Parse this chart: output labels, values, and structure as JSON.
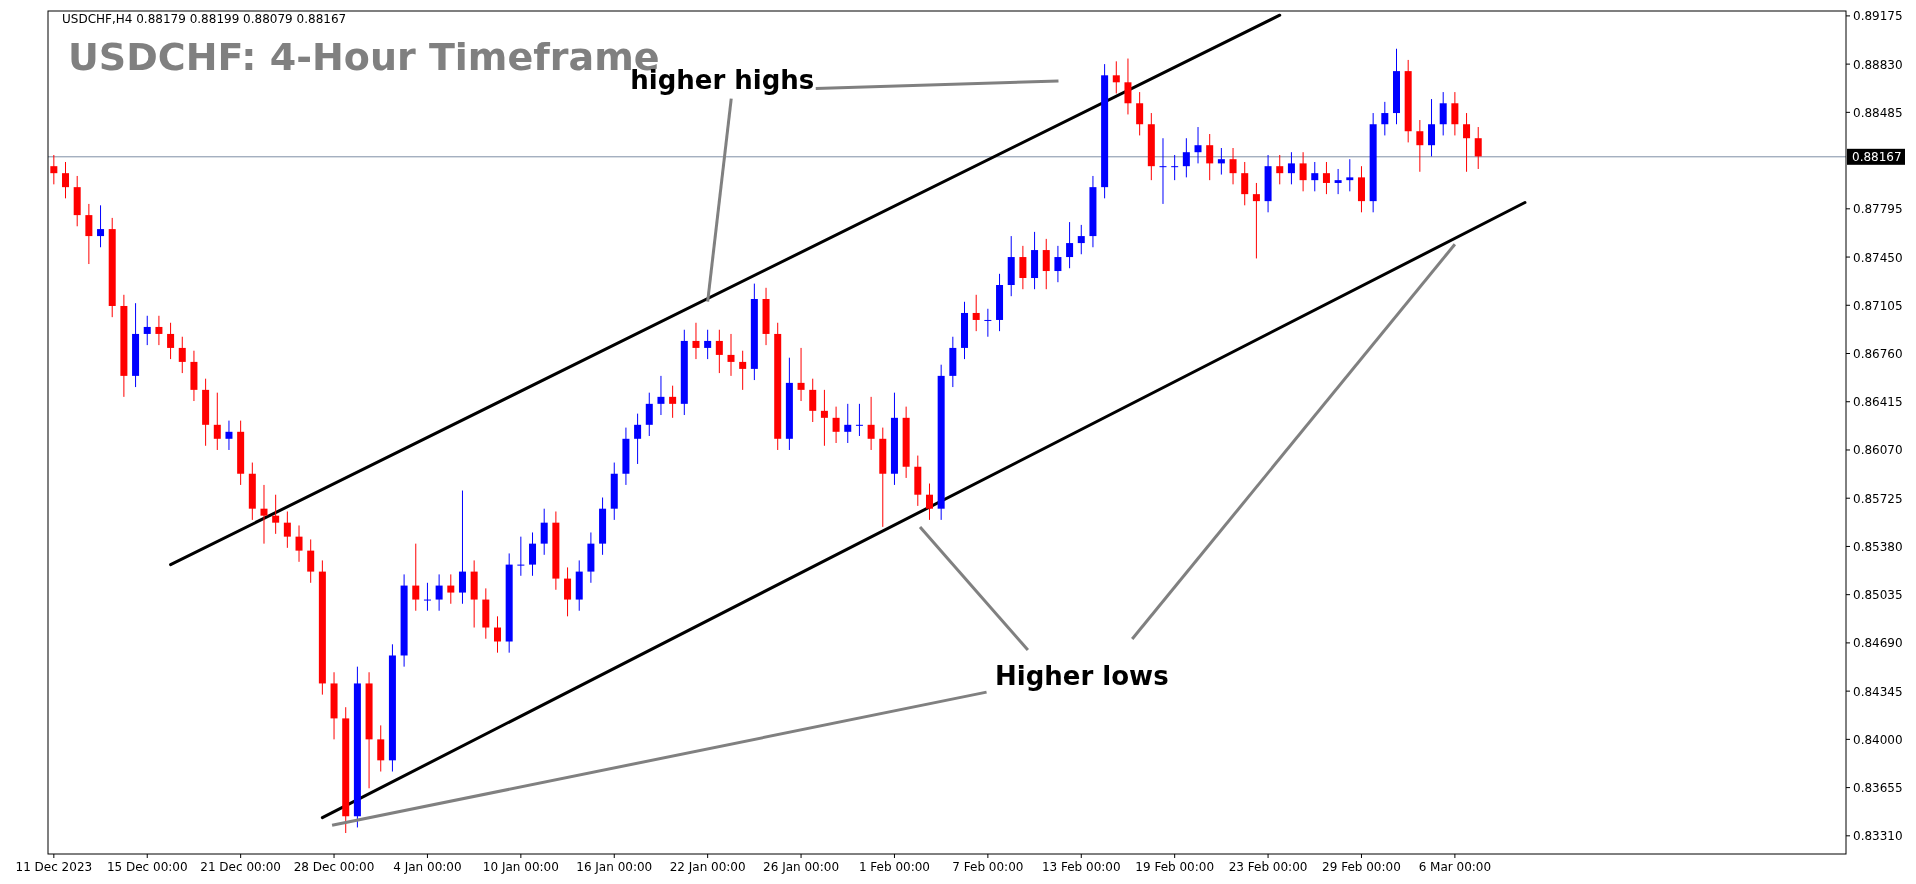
{
  "chart_data": {
    "type": "candlestick",
    "title": "USDCHF: 4-Hour Timeframe",
    "annotations": [
      "USDCHF,H4  0.88179 0.88199 0.88079 0.88167",
      {
        "text": "higher highs",
        "x": "22 Jan 00:00",
        "y": 0.8716
      },
      {
        "text": "Higher lows",
        "x": "6 Mar 00:00",
        "y": 0.8757
      }
    ],
    "categories": [
      "11 Dec 2023",
      null,
      null,
      null,
      null,
      null,
      null,
      null,
      "15 Dec 00:00",
      null,
      null,
      null,
      null,
      null,
      null,
      null,
      "21 Dec 00:00",
      null,
      null,
      null,
      null,
      null,
      null,
      null,
      "28 Dec 00:00",
      null,
      null,
      null,
      null,
      null,
      null,
      null,
      "4 Jan 00:00",
      null,
      null,
      null,
      null,
      null,
      null,
      null,
      "10 Jan 00:00",
      null,
      null,
      null,
      null,
      null,
      null,
      null,
      "16 Jan 00:00",
      null,
      null,
      null,
      null,
      null,
      null,
      null,
      "22 Jan 00:00",
      null,
      null,
      null,
      null,
      null,
      null,
      null,
      "26 Jan 00:00",
      null,
      null,
      null,
      null,
      null,
      null,
      null,
      "1 Feb 00:00",
      null,
      null,
      null,
      null,
      null,
      null,
      null,
      "7 Feb 00:00",
      null,
      null,
      null,
      null,
      null,
      null,
      null,
      "13 Feb 00:00",
      null,
      null,
      null,
      null,
      null,
      null,
      null,
      "19 Feb 00:00",
      null,
      null,
      null,
      null,
      null,
      null,
      null,
      "23 Feb 00:00",
      null,
      null,
      null,
      null,
      null,
      null,
      null,
      "29 Feb 00:00",
      null,
      null,
      null,
      null,
      null,
      null,
      null,
      "6 Mar 00:00",
      null,
      null,
      null,
      null,
      null,
      null,
      null,
      null,
      null,
      null,
      null,
      null,
      null,
      null,
      null,
      null,
      null,
      null,
      null,
      null,
      null,
      null,
      null,
      null,
      null,
      null,
      null,
      null,
      null,
      null,
      null,
      null,
      null
    ],
    "colors": [
      "#ff0000",
      "#ff0000",
      "#ff0000",
      "#ff0000",
      "#0000ff",
      "#ff0000",
      "#ff0000",
      "#0000ff",
      "#0000ff",
      "#ff0000",
      "#ff0000",
      "#ff0000",
      "#ff0000",
      "#ff0000",
      "#ff0000",
      "#0000ff",
      "#ff0000",
      "#ff0000",
      "#ff0000",
      "#ff0000",
      "#ff0000",
      "#ff0000",
      "#ff0000",
      "#ff0000",
      "#ff0000",
      "#ff0000",
      "#0000ff",
      "#ff0000",
      "#ff0000",
      "#0000ff",
      "#0000ff",
      "#ff0000",
      "#0000ff",
      "#0000ff",
      "#ff0000",
      "#0000ff",
      "#ff0000",
      "#ff0000",
      "#ff0000",
      "#0000ff",
      "#0000ff",
      "#0000ff",
      "#0000ff",
      "#ff0000",
      "#ff0000",
      "#0000ff",
      "#0000ff",
      "#0000ff",
      "#0000ff",
      "#0000ff",
      "#0000ff",
      "#0000ff",
      "#0000ff",
      "#ff0000",
      "#0000ff",
      "#ff0000",
      "#0000ff",
      "#ff0000",
      "#ff0000",
      "#ff0000",
      "#0000ff",
      "#ff0000",
      "#ff0000",
      "#0000ff",
      "#ff0000",
      "#ff0000",
      "#ff0000",
      "#ff0000",
      "#0000ff",
      "#0000ff",
      "#ff0000",
      "#ff0000",
      "#0000ff",
      "#ff0000",
      "#ff0000",
      "#ff0000",
      "#0000ff",
      "#0000ff",
      "#0000ff",
      "#ff0000",
      "#0000ff",
      "#0000ff",
      "#0000ff",
      "#ff0000",
      "#0000ff",
      "#ff0000",
      "#0000ff",
      "#0000ff",
      "#0000ff",
      "#0000ff",
      "#0000ff",
      "#ff0000",
      "#ff0000",
      "#ff0000",
      "#ff0000",
      "#0000ff",
      "#0000ff",
      "#0000ff",
      "#0000ff",
      "#ff0000",
      "#0000ff",
      "#ff0000",
      "#ff0000",
      "#ff0000",
      "#0000ff",
      "#ff0000",
      "#0000ff",
      "#ff0000",
      "#0000ff",
      "#ff0000",
      "#0000ff",
      "#0000ff",
      "#ff0000",
      "#0000ff",
      "#0000ff",
      "#0000ff",
      "#ff0000",
      "#ff0000",
      "#0000ff",
      "#0000ff",
      "#ff0000",
      "#ff0000",
      "#ff0000",
      null,
      null,
      null,
      null,
      null,
      null,
      null,
      null,
      null,
      null,
      null,
      null,
      null,
      null,
      null,
      null,
      null,
      null,
      null,
      null,
      null,
      null,
      null,
      null,
      null,
      null,
      null,
      null,
      null,
      null,
      null
    ],
    "ohlc": [
      [
        0.881,
        0.8818,
        0.8797,
        0.8805
      ],
      [
        0.8805,
        0.8813,
        0.8787,
        0.8795
      ],
      [
        0.8795,
        0.8803,
        0.8767,
        0.8775
      ],
      [
        0.8775,
        0.8783,
        0.874,
        0.876
      ],
      [
        0.876,
        0.8782,
        0.8752,
        0.8765
      ],
      [
        0.8765,
        0.8773,
        0.8702,
        0.871
      ],
      [
        0.871,
        0.8718,
        0.8645,
        0.866
      ],
      [
        0.866,
        0.8712,
        0.8652,
        0.869
      ],
      [
        0.869,
        0.8703,
        0.8682,
        0.8695
      ],
      [
        0.8695,
        0.8703,
        0.8682,
        0.869
      ],
      [
        0.869,
        0.8698,
        0.8672,
        0.868
      ],
      [
        0.868,
        0.8688,
        0.8662,
        0.867
      ],
      [
        0.867,
        0.8678,
        0.8642,
        0.865
      ],
      [
        0.865,
        0.8658,
        0.861,
        0.8625
      ],
      [
        0.8625,
        0.8648,
        0.8607,
        0.8615
      ],
      [
        0.8615,
        0.8628,
        0.8607,
        0.862
      ],
      [
        0.862,
        0.8628,
        0.8582,
        0.859
      ],
      [
        0.859,
        0.8598,
        0.8557,
        0.8565
      ],
      [
        0.8565,
        0.8582,
        0.854,
        0.856
      ],
      [
        0.856,
        0.8575,
        0.8547,
        0.8555
      ],
      [
        0.8555,
        0.8563,
        0.8537,
        0.8545
      ],
      [
        0.8545,
        0.8553,
        0.8527,
        0.8535
      ],
      [
        0.8535,
        0.8543,
        0.8512,
        0.852
      ],
      [
        0.852,
        0.8528,
        0.8432,
        0.844
      ],
      [
        0.844,
        0.8448,
        0.84,
        0.8415
      ],
      [
        0.8415,
        0.8423,
        0.8333,
        0.8345
      ],
      [
        0.8345,
        0.8452,
        0.8337,
        0.844
      ],
      [
        0.844,
        0.8448,
        0.8365,
        0.84
      ],
      [
        0.84,
        0.841,
        0.8377,
        0.8385
      ],
      [
        0.8385,
        0.8468,
        0.8377,
        0.846
      ],
      [
        0.846,
        0.8518,
        0.8452,
        0.851
      ],
      [
        0.851,
        0.854,
        0.8492,
        0.85
      ],
      [
        0.85,
        0.8512,
        0.8492,
        0.85
      ],
      [
        0.85,
        0.8518,
        0.8492,
        0.851
      ],
      [
        0.851,
        0.8518,
        0.8497,
        0.8505
      ],
      [
        0.8505,
        0.8578,
        0.8497,
        0.852
      ],
      [
        0.852,
        0.8528,
        0.848,
        0.85
      ],
      [
        0.85,
        0.8508,
        0.8472,
        0.848
      ],
      [
        0.848,
        0.8488,
        0.8462,
        0.847
      ],
      [
        0.847,
        0.8533,
        0.8462,
        0.8525
      ],
      [
        0.8525,
        0.8545,
        0.8517,
        0.8525
      ],
      [
        0.8525,
        0.8548,
        0.8517,
        0.854
      ],
      [
        0.854,
        0.8565,
        0.8532,
        0.8555
      ],
      [
        0.8555,
        0.8563,
        0.8507,
        0.8515
      ],
      [
        0.8515,
        0.8523,
        0.8488,
        0.85
      ],
      [
        0.85,
        0.8528,
        0.8492,
        0.852
      ],
      [
        0.852,
        0.8548,
        0.8512,
        0.854
      ],
      [
        0.854,
        0.8573,
        0.8532,
        0.8565
      ],
      [
        0.8565,
        0.8598,
        0.8557,
        0.859
      ],
      [
        0.859,
        0.8623,
        0.8582,
        0.8615
      ],
      [
        0.8615,
        0.8633,
        0.8597,
        0.8625
      ],
      [
        0.8625,
        0.8648,
        0.8617,
        0.864
      ],
      [
        0.864,
        0.866,
        0.8632,
        0.8645
      ],
      [
        0.8645,
        0.8653,
        0.863,
        0.864
      ],
      [
        0.864,
        0.8693,
        0.8632,
        0.8685
      ],
      [
        0.8685,
        0.8698,
        0.8672,
        0.868
      ],
      [
        0.868,
        0.8693,
        0.8672,
        0.8685
      ],
      [
        0.8685,
        0.8693,
        0.8662,
        0.8675
      ],
      [
        0.8675,
        0.869,
        0.866,
        0.867
      ],
      [
        0.867,
        0.8678,
        0.865,
        0.8665
      ],
      [
        0.8665,
        0.8726,
        0.8657,
        0.8715
      ],
      [
        0.8715,
        0.8723,
        0.8682,
        0.869
      ],
      [
        0.869,
        0.8698,
        0.8607,
        0.8615
      ],
      [
        0.8615,
        0.8673,
        0.8607,
        0.8655
      ],
      [
        0.8655,
        0.868,
        0.8642,
        0.865
      ],
      [
        0.865,
        0.8658,
        0.8627,
        0.8635
      ],
      [
        0.8635,
        0.865,
        0.861,
        0.863
      ],
      [
        0.863,
        0.8638,
        0.8612,
        0.862
      ],
      [
        0.862,
        0.864,
        0.8612,
        0.8625
      ],
      [
        0.8625,
        0.864,
        0.8617,
        0.8625
      ],
      [
        0.8625,
        0.8645,
        0.8607,
        0.8615
      ],
      [
        0.8615,
        0.8623,
        0.8552,
        0.859
      ],
      [
        0.859,
        0.8648,
        0.8582,
        0.863
      ],
      [
        0.863,
        0.8638,
        0.8587,
        0.8595
      ],
      [
        0.8595,
        0.8603,
        0.8567,
        0.8575
      ],
      [
        0.8575,
        0.8583,
        0.8557,
        0.8565
      ],
      [
        0.8565,
        0.8668,
        0.8557,
        0.866
      ],
      [
        0.866,
        0.8688,
        0.8652,
        0.868
      ],
      [
        0.868,
        0.8713,
        0.8672,
        0.8705
      ],
      [
        0.8705,
        0.8718,
        0.8692,
        0.87
      ],
      [
        0.87,
        0.8708,
        0.8688,
        0.87
      ],
      [
        0.87,
        0.8733,
        0.8692,
        0.8725
      ],
      [
        0.8725,
        0.876,
        0.8717,
        0.8745
      ],
      [
        0.8745,
        0.8753,
        0.8722,
        0.873
      ],
      [
        0.873,
        0.8763,
        0.8722,
        0.875
      ],
      [
        0.875,
        0.8758,
        0.8722,
        0.8735
      ],
      [
        0.8735,
        0.8753,
        0.8727,
        0.8745
      ],
      [
        0.8745,
        0.877,
        0.8737,
        0.8755
      ],
      [
        0.8755,
        0.8768,
        0.8747,
        0.876
      ],
      [
        0.876,
        0.8803,
        0.8752,
        0.8795
      ],
      [
        0.8795,
        0.8883,
        0.8787,
        0.8875
      ],
      [
        0.8875,
        0.8885,
        0.8862,
        0.887
      ],
      [
        0.887,
        0.8887,
        0.8847,
        0.8855
      ],
      [
        0.8855,
        0.8863,
        0.8832,
        0.884
      ],
      [
        0.884,
        0.8848,
        0.88,
        0.881
      ],
      [
        0.881,
        0.883,
        0.8783,
        0.881
      ],
      [
        0.881,
        0.8818,
        0.88,
        0.881
      ],
      [
        0.881,
        0.883,
        0.8802,
        0.882
      ],
      [
        0.882,
        0.8838,
        0.8812,
        0.8825
      ],
      [
        0.8825,
        0.8833,
        0.88,
        0.8812
      ],
      [
        0.8812,
        0.8823,
        0.8804,
        0.8815
      ],
      [
        0.8815,
        0.8823,
        0.8797,
        0.8805
      ],
      [
        0.8805,
        0.8813,
        0.8782,
        0.879
      ],
      [
        0.879,
        0.8798,
        0.8744,
        0.8785
      ],
      [
        0.8785,
        0.8818,
        0.8777,
        0.881
      ],
      [
        0.881,
        0.8818,
        0.8797,
        0.8805
      ],
      [
        0.8805,
        0.882,
        0.8797,
        0.8812
      ],
      [
        0.8812,
        0.882,
        0.8792,
        0.88
      ],
      [
        0.88,
        0.8813,
        0.8792,
        0.8805
      ],
      [
        0.8805,
        0.8813,
        0.879,
        0.8798
      ],
      [
        0.8798,
        0.8808,
        0.879,
        0.88
      ],
      [
        0.88,
        0.8815,
        0.8792,
        0.8802
      ],
      [
        0.8802,
        0.881,
        0.8777,
        0.8785
      ],
      [
        0.8785,
        0.8848,
        0.8777,
        0.884
      ],
      [
        0.884,
        0.8856,
        0.8832,
        0.8848
      ],
      [
        0.8848,
        0.8894,
        0.884,
        0.8878
      ],
      [
        0.8878,
        0.8886,
        0.8827,
        0.8835
      ],
      [
        0.8835,
        0.8843,
        0.8806,
        0.8825
      ],
      [
        0.8825,
        0.8858,
        0.8817,
        0.884
      ],
      [
        0.884,
        0.8863,
        0.8832,
        0.8855
      ],
      [
        0.8855,
        0.8863,
        0.8832,
        0.884
      ],
      [
        0.884,
        0.8848,
        0.8806,
        0.883
      ],
      [
        0.883,
        0.8838,
        0.8808,
        0.8817
      ],
      null,
      null,
      null,
      null,
      null,
      null,
      null,
      null,
      null,
      null,
      null,
      null,
      null,
      null,
      null,
      null,
      null,
      null,
      null,
      null,
      null,
      null,
      null,
      null,
      null,
      null,
      null,
      null,
      null,
      null,
      null
    ],
    "series": [
      {
        "type": "line",
        "color": "#000000",
        "values": [
          null,
          null,
          null,
          null,
          null,
          null,
          null,
          null,
          null,
          null,
          0.8525,
          null,
          null,
          null,
          null,
          null,
          null,
          null,
          null,
          null,
          null,
          null,
          null,
          null,
          null,
          null,
          null,
          null,
          null,
          null,
          null,
          null,
          null,
          null,
          null,
          null,
          null,
          null,
          null,
          null,
          null,
          null,
          null,
          null,
          null,
          null,
          null,
          null,
          null,
          null,
          null,
          null,
          null,
          null,
          null,
          null,
          null,
          null,
          null,
          null,
          null,
          null,
          null,
          null,
          null,
          null,
          null,
          null,
          null,
          null,
          null,
          null,
          null,
          null,
          null,
          null,
          null,
          null,
          null,
          null,
          null,
          null,
          null,
          null,
          null,
          null,
          null,
          null,
          null,
          null,
          null,
          null,
          null,
          null,
          null,
          null,
          null,
          null,
          null,
          null,
          null,
          null,
          null,
          null,
          null,
          0.8918,
          null,
          null,
          null,
          null,
          null,
          null,
          null,
          null,
          null,
          null,
          null,
          null,
          null,
          null,
          null,
          null,
          null,
          null,
          null,
          null,
          null,
          null,
          null,
          null,
          null,
          null,
          null,
          null,
          null,
          null,
          null,
          null,
          null,
          null,
          null,
          null,
          null,
          null,
          null,
          null,
          null,
          null,
          null,
          null,
          null,
          null,
          null,
          null
        ]
      },
      {
        "type": "line",
        "color": "#000000",
        "values": [
          null,
          null,
          null,
          null,
          null,
          null,
          null,
          null,
          null,
          null,
          null,
          null,
          null,
          null,
          null,
          null,
          null,
          null,
          null,
          null,
          null,
          null,
          null,
          0.8344,
          null,
          null,
          null,
          null,
          null,
          null,
          null,
          null,
          null,
          null,
          null,
          null,
          null,
          null,
          null,
          null,
          null,
          null,
          null,
          null,
          null,
          null,
          null,
          null,
          null,
          null,
          null,
          null,
          null,
          null,
          null,
          null,
          null,
          null,
          null,
          null,
          null,
          null,
          null,
          null,
          null,
          null,
          null,
          null,
          null,
          null,
          null,
          null,
          null,
          null,
          null,
          null,
          null,
          null,
          null,
          null,
          null,
          null,
          null,
          null,
          null,
          null,
          null,
          null,
          null,
          null,
          null,
          null,
          null,
          null,
          null,
          null,
          null,
          null,
          null,
          null,
          null,
          null,
          null,
          null,
          null,
          null,
          null,
          null,
          null,
          null,
          null,
          null,
          null,
          null,
          null,
          null,
          null,
          null,
          null,
          null,
          null,
          null,
          null,
          null,
          null,
          null,
          0.8784,
          null,
          null,
          null,
          null,
          null,
          null,
          null,
          null,
          null,
          null,
          null,
          null,
          null,
          null,
          null,
          null,
          null,
          null,
          null,
          null,
          null,
          null,
          null,
          null,
          null,
          null,
          null
        ]
      }
    ],
    "ylim": [
      0.8318,
      0.8921
    ],
    "yticks": [
      0.89175,
      {
        "value": 0.8883,
        "label": "0.88830"
      },
      0.88485,
      0.87795,
      {
        "value": 0.8745,
        "label": "0.87450"
      },
      0.87105,
      {
        "value": 0.8676,
        "label": "0.86760"
      },
      0.86415,
      {
        "value": 0.8607,
        "label": "0.86070"
      },
      0.85725,
      {
        "value": 0.8538,
        "label": "0.85380"
      },
      0.85035,
      {
        "value": 0.8469,
        "label": "0.84690"
      },
      0.84345,
      {
        "value": 0.84,
        "label": "0.84000"
      },
      0.83655,
      {
        "value": 0.8331,
        "label": "0.83310"
      }
    ],
    "ref_lines": [
      {
        "axis": "y",
        "value": 0.88167,
        "label": "0.88167",
        "color": "#7f8fa6"
      }
    ],
    "grid": false
  }
}
